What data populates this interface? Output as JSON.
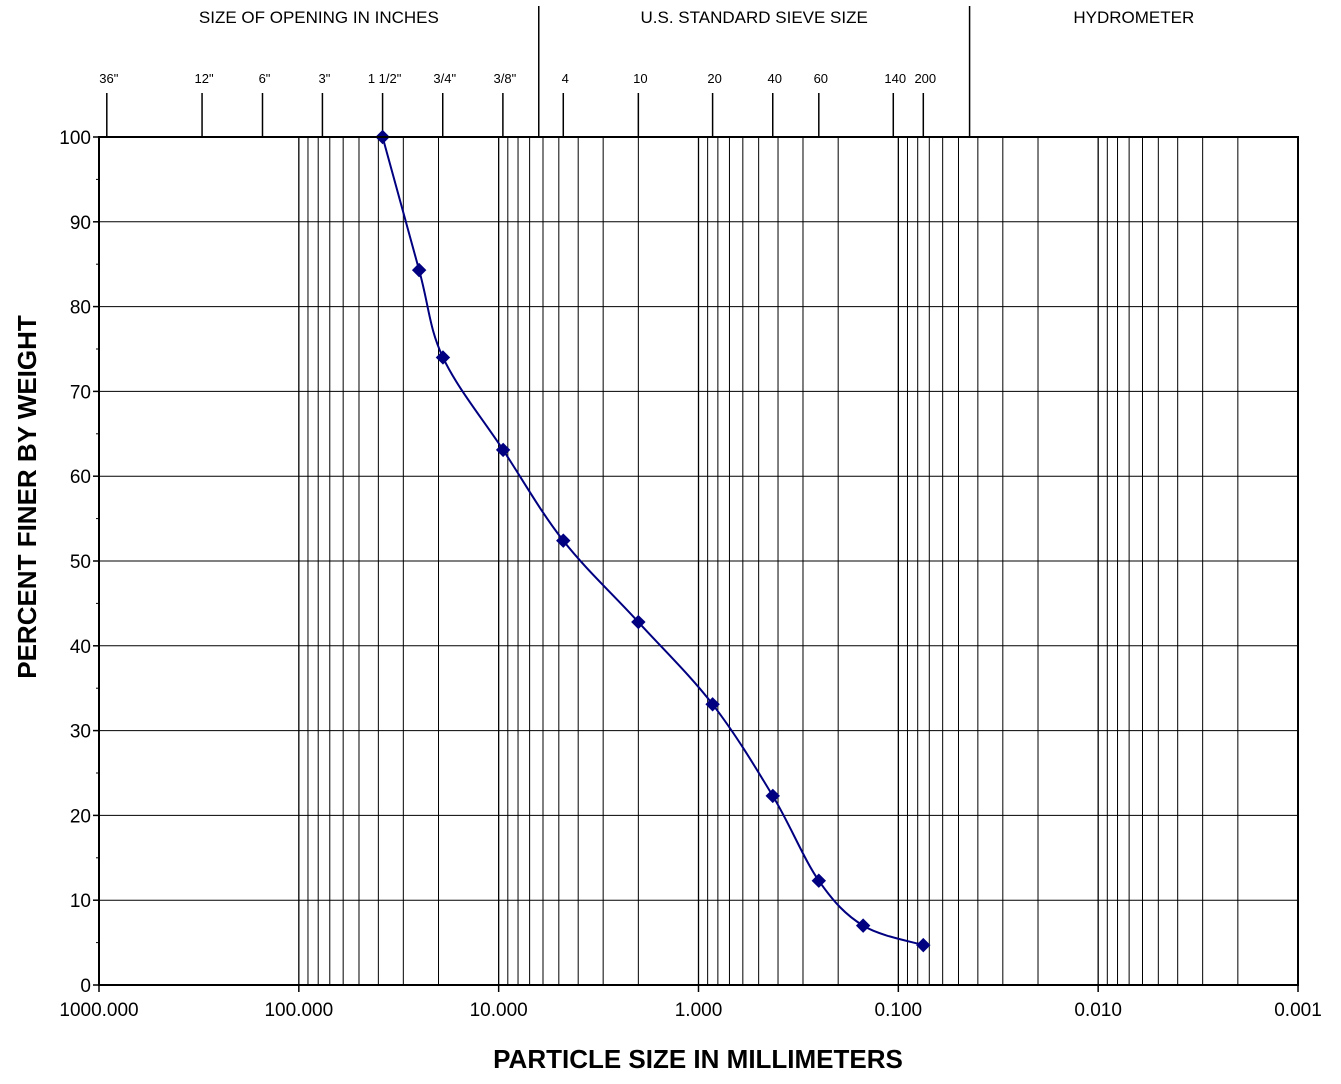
{
  "chart_data": {
    "type": "line",
    "x_scale": "log",
    "x_reversed": true,
    "xlim": [
      1000,
      0.001
    ],
    "ylim": [
      0,
      100
    ],
    "grid": true,
    "xlabel": "PARTICLE SIZE IN MILLIMETERS",
    "ylabel": "PERCENT FINER BY WEIGHT",
    "x_tick_labels": [
      "1000.000",
      "100.000",
      "10.000",
      "1.000",
      "0.100",
      "0.010",
      "0.001"
    ],
    "x_tick_values": [
      1000,
      100,
      10,
      1,
      0.1,
      0.01,
      0.001
    ],
    "y_tick_labels": [
      "0",
      "10",
      "20",
      "30",
      "40",
      "50",
      "60",
      "70",
      "80",
      "90",
      "100"
    ],
    "y_tick_values": [
      0,
      10,
      20,
      30,
      40,
      50,
      60,
      70,
      80,
      90,
      100
    ],
    "section_headers": [
      {
        "label": "SIZE OF OPENING IN INCHES",
        "from": 1000,
        "to": 6.3
      },
      {
        "label": "U.S. STANDARD SIEVE SIZE",
        "from": 6.3,
        "to": 0.044
      },
      {
        "label": "HYDROMETER",
        "from": 0.044,
        "to": 0.001
      }
    ],
    "section_dividers": [
      6.3,
      0.044
    ],
    "sieve_marks": [
      {
        "label": "36\"",
        "size_mm": 914
      },
      {
        "label": "12\"",
        "size_mm": 305
      },
      {
        "label": "6\"",
        "size_mm": 152
      },
      {
        "label": "3\"",
        "size_mm": 76.2
      },
      {
        "label": "1 1/2\"",
        "size_mm": 38.1
      },
      {
        "label": "3/4\"",
        "size_mm": 19.05
      },
      {
        "label": "3/8\"",
        "size_mm": 9.525
      },
      {
        "label": "4",
        "size_mm": 4.75
      },
      {
        "label": "10",
        "size_mm": 2.0
      },
      {
        "label": "20",
        "size_mm": 0.85
      },
      {
        "label": "40",
        "size_mm": 0.425
      },
      {
        "label": "60",
        "size_mm": 0.25
      },
      {
        "label": "140",
        "size_mm": 0.106
      },
      {
        "label": "200",
        "size_mm": 0.075
      }
    ],
    "series": [
      {
        "color": "#000080",
        "marker": "diamond",
        "x": [
          38.1,
          25.0,
          19.0,
          9.5,
          4.75,
          2.0,
          0.85,
          0.425,
          0.25,
          0.15,
          0.075
        ],
        "y": [
          100,
          84.3,
          74.0,
          63.1,
          52.4,
          42.8,
          33.1,
          22.3,
          12.3,
          7.0,
          4.7
        ]
      }
    ]
  }
}
